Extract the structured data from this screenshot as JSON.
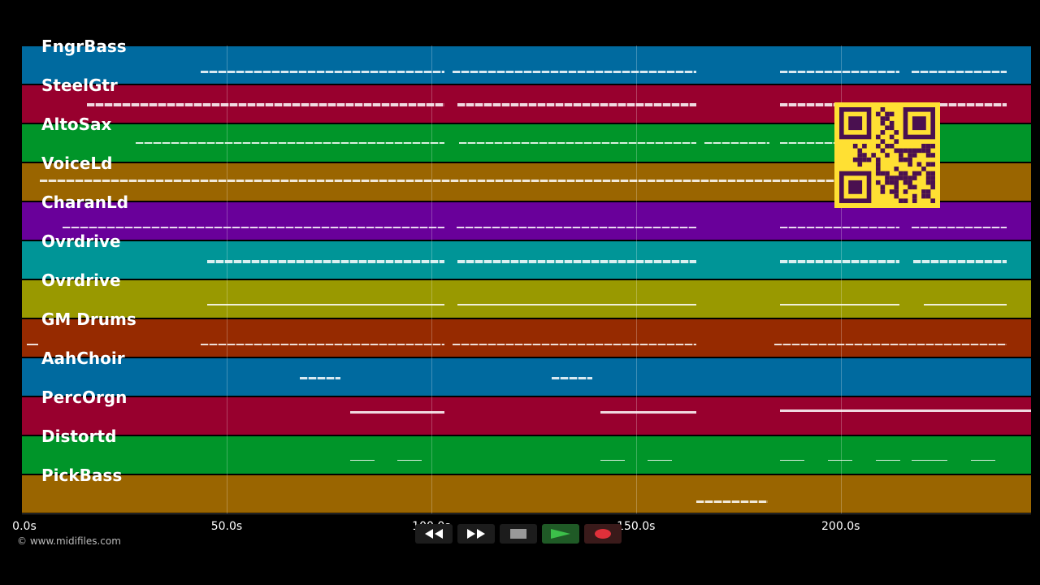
{
  "tracks": [
    {
      "label": "FngrBass",
      "color": "#006a9f"
    },
    {
      "label": "SteelGtr",
      "color": "#98002e"
    },
    {
      "label": "AltoSax",
      "color": "#009529"
    },
    {
      "label": "VoiceLd",
      "color": "#9a6500"
    },
    {
      "label": "CharanLd",
      "color": "#69009a"
    },
    {
      "label": "Ovrdrive",
      "color": "#009597"
    },
    {
      "label": "Ovrdrive",
      "color": "#999900"
    },
    {
      "label": "GM Drums",
      "color": "#962a00"
    },
    {
      "label": "AahChoir",
      "color": "#006a9f"
    },
    {
      "label": "PercOrgn",
      "color": "#98002e"
    },
    {
      "label": "Distortd",
      "color": "#009529"
    },
    {
      "label": "PickBass",
      "color": "#9a6500"
    }
  ],
  "timeline": {
    "ticks": [
      "0.0s",
      "50.0s",
      "100.0s",
      "150.0s",
      "200.0s"
    ],
    "tick_values": [
      0,
      50,
      100,
      150,
      200
    ],
    "max_seconds": 246.5
  },
  "copyright": "© www.midifiles.com",
  "transport": {
    "buttons": [
      {
        "name": "rewind-button",
        "icon": "rewind-icon"
      },
      {
        "name": "fast-forward-button",
        "icon": "fast-forward-icon"
      },
      {
        "name": "stop-button",
        "icon": "stop-icon"
      },
      {
        "name": "play-button",
        "icon": "play-icon"
      },
      {
        "name": "record-button",
        "icon": "record-icon"
      }
    ]
  },
  "qr_code": {
    "color": "#ffe033",
    "module_color": "#4a1050"
  }
}
